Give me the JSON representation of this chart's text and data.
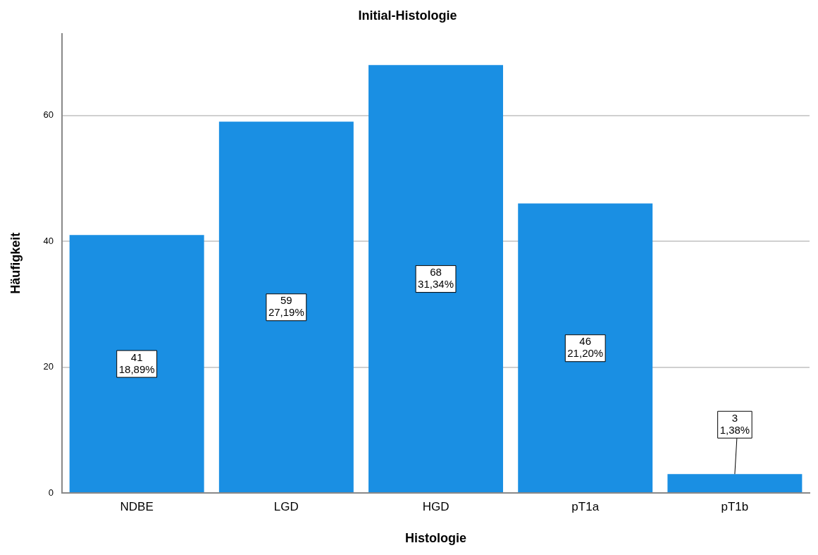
{
  "chart_data": {
    "type": "bar",
    "title": "Initial-Histologie",
    "xlabel": "Histologie",
    "ylabel": "Häufigkeit",
    "categories": [
      "NDBE",
      "LGD",
      "HGD",
      "pT1a",
      "pT1b"
    ],
    "values": [
      41,
      59,
      68,
      46,
      3
    ],
    "color": "#1a8fe3",
    "value_labels": [
      "41\n18,89%",
      "59\n27,19%",
      "68\n31,34%",
      "46\n21,20%",
      "3\n1,38%"
    ],
    "ylim": [
      0,
      73
    ],
    "yticks": [
      0,
      20,
      40,
      60
    ],
    "grid": "y",
    "legend": false
  }
}
